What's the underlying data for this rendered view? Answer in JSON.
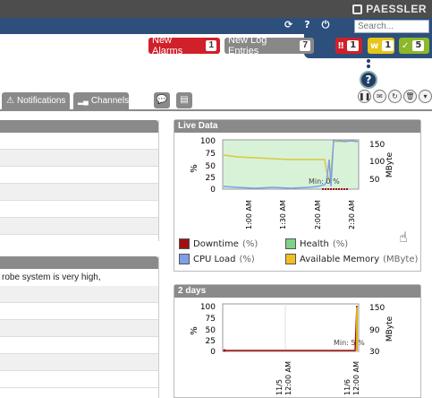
{
  "header": {
    "brand": "PAESSLER",
    "search_placeholder": "Search..."
  },
  "alarms": {
    "new_alarms_label": "New Alarms",
    "new_alarms_count": "1",
    "new_log_label": "New Log Entries",
    "new_log_count": "7",
    "status_red": "1",
    "status_yellow": "1",
    "status_green": "5"
  },
  "tabs": {
    "notifications": "Notifications",
    "channels": "Channels"
  },
  "left": {
    "warning_text": "robe system is very high,"
  },
  "live_panel": {
    "title": "Live Data",
    "min_label": "Min: 0 %",
    "y_label": "%",
    "y2_label": "MByte"
  },
  "twodays_panel": {
    "title": "2 days",
    "min_label": "Min: 5 %",
    "y_label": "%",
    "y2_label": "MByte"
  },
  "legend": [
    {
      "label": "Downtime",
      "unit": "(%)",
      "color": "#a01010"
    },
    {
      "label": "Health",
      "unit": "(%)",
      "color": "#7fd18a"
    },
    {
      "label": "CPU Load",
      "unit": "(%)",
      "color": "#7f9fe8"
    },
    {
      "label": "Available Memory",
      "unit": "(MByte)",
      "color": "#f0c020"
    }
  ],
  "chart_data": [
    {
      "type": "line",
      "title": "Live Data",
      "ylabel": "%",
      "y2label": "MByte",
      "ylim": [
        0,
        100
      ],
      "y2lim": [
        25,
        175
      ],
      "yticks": [
        "100",
        "75",
        "50",
        "25",
        "0"
      ],
      "y2ticks": [
        "150",
        "100",
        "50"
      ],
      "xticks": [
        "1:00 AM",
        "1:30 AM",
        "2:00 AM",
        "2:30 AM"
      ],
      "annotation": "Min: 0 %",
      "series": [
        {
          "name": "Health",
          "values": [
            100,
            100,
            100,
            100,
            100,
            100,
            100,
            100,
            40,
            100
          ]
        },
        {
          "name": "CPU Load",
          "values": [
            5,
            3,
            4,
            6,
            3,
            5,
            4,
            8,
            50,
            95
          ]
        },
        {
          "name": "Available Memory",
          "values": [
            130,
            120,
            118,
            116,
            115,
            115,
            114,
            112,
            60,
            110
          ]
        },
        {
          "name": "Downtime",
          "values": [
            0,
            0,
            0,
            0,
            0,
            0,
            0,
            0,
            0,
            0
          ]
        }
      ]
    },
    {
      "type": "line",
      "title": "2 days",
      "ylabel": "%",
      "y2label": "MByte",
      "ylim": [
        0,
        100
      ],
      "yticks": [
        "100",
        "75",
        "50",
        "25",
        "0"
      ],
      "y2ticks": [
        "150",
        "90",
        "30"
      ],
      "xticks": [
        "11/5 12:00 AM",
        "11/6 12:00 AM"
      ],
      "annotation": "Min: 5 %",
      "series": [
        {
          "name": "Downtime",
          "values": [
            0,
            0,
            0,
            100
          ]
        },
        {
          "name": "Available Memory",
          "values": [
            30,
            30,
            30,
            150
          ]
        }
      ]
    }
  ]
}
